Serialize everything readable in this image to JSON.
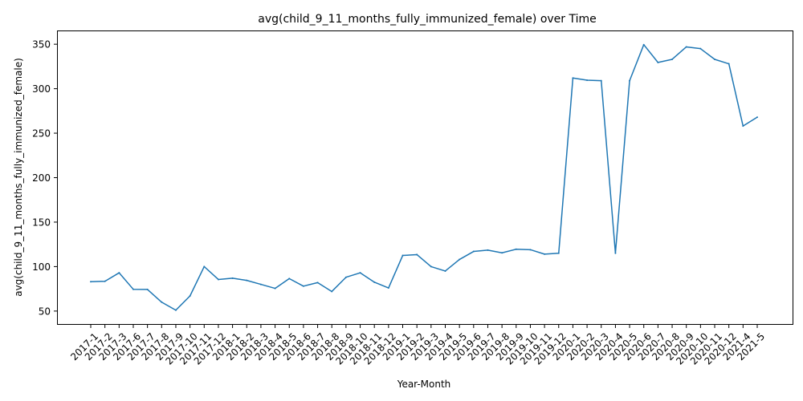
{
  "chart_data": {
    "type": "line",
    "title": "avg(child_9_11_months_fully_immunized_female) over Time",
    "xlabel": "Year-Month",
    "ylabel": "avg(child_9_11_months_fully_immunized_female)",
    "categories": [
      "2017-1",
      "2017-2",
      "2017-3",
      "2017-6",
      "2017-7",
      "2017-8",
      "2017-9",
      "2017-10",
      "2017-11",
      "2017-12",
      "2018-1",
      "2018-2",
      "2018-3",
      "2018-4",
      "2018-5",
      "2018-6",
      "2018-7",
      "2018-8",
      "2018-9",
      "2018-10",
      "2018-11",
      "2018-12",
      "2019-1",
      "2019-2",
      "2019-3",
      "2019-4",
      "2019-5",
      "2019-6",
      "2019-7",
      "2019-8",
      "2019-9",
      "2019-10",
      "2019-11",
      "2019-12",
      "2020-1",
      "2020-2",
      "2020-3",
      "2020-4",
      "2020-5",
      "2020-6",
      "2020-7",
      "2020-8",
      "2020-9",
      "2020-10",
      "2020-11",
      "2020-12",
      "2021-4",
      "2021-5"
    ],
    "series": [
      {
        "values": [
          83,
          83.5,
          93,
          74.5,
          74.3,
          60,
          51,
          67,
          100,
          85.5,
          87,
          84.5,
          80,
          75.5,
          86.5,
          78,
          82,
          72,
          88,
          93,
          82.5,
          76,
          112.5,
          113.5,
          100,
          95,
          108,
          117,
          118.5,
          115.5,
          119.5,
          119,
          114,
          115,
          312,
          309.5,
          309,
          115,
          309,
          349.5,
          329.5,
          333,
          347,
          345,
          333,
          328,
          258,
          268
        ],
        "color": "#1f77b4"
      }
    ],
    "yticks": [
      50,
      100,
      150,
      200,
      250,
      300,
      350
    ],
    "ylim": [
      35,
      365
    ],
    "grid": false,
    "legend": "none"
  }
}
